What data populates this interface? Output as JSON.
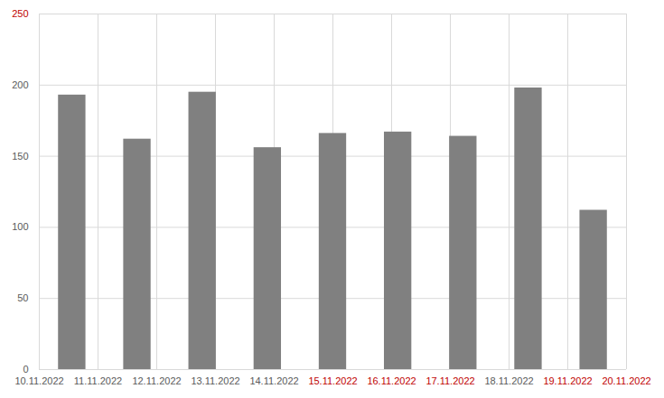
{
  "chart_data": {
    "type": "bar",
    "x": [
      0.56,
      1.67,
      2.78,
      3.89,
      5.0,
      6.11,
      7.22,
      8.33,
      9.44
    ],
    "values": [
      193,
      162,
      195,
      156,
      166,
      167,
      164,
      198,
      112
    ],
    "color": "#808080",
    "xlim": [
      0,
      10
    ],
    "xticks": [
      {
        "value": 0,
        "label": "10.11.2022"
      },
      {
        "value": 1,
        "label": "11.11.2022"
      },
      {
        "value": 2,
        "label": "12.11.2022"
      },
      {
        "value": 3,
        "label": "13.11.2022"
      },
      {
        "value": 4,
        "label": "14.11.2022"
      },
      {
        "value": 5,
        "label": "15.11.2022"
      },
      {
        "value": 6,
        "label": "16.11.2022"
      },
      {
        "value": 7,
        "label": "17.11.2022"
      },
      {
        "value": 8,
        "label": "18.11.2022"
      },
      {
        "value": 9,
        "label": "19.11.2022"
      },
      {
        "value": 10,
        "label": "20.11.2022"
      }
    ],
    "ylim": [
      0,
      250
    ],
    "yticks": [
      0,
      50,
      100,
      150,
      200,
      250
    ],
    "grid": true
  }
}
